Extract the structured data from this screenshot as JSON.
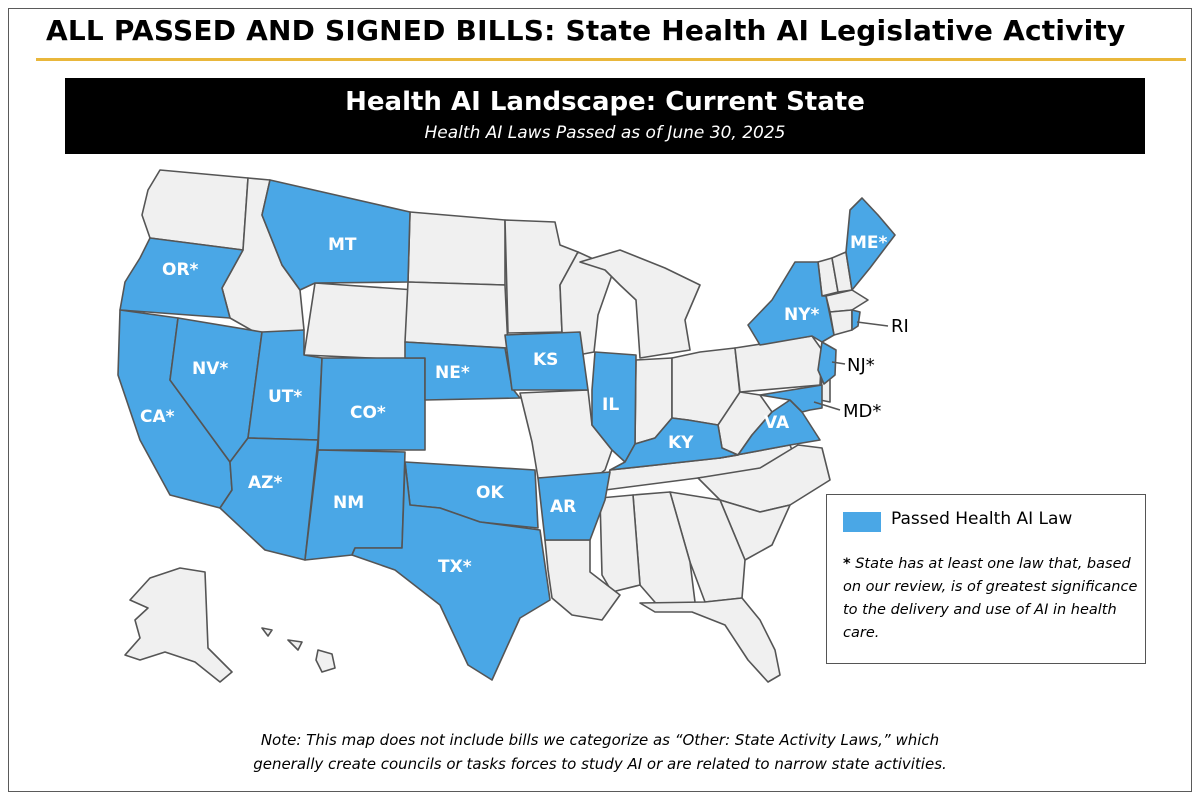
{
  "header": {
    "title": "ALL PASSED AND SIGNED BILLS: State Health AI Legislative Activity"
  },
  "banner": {
    "title": "Health AI Landscape: Current State",
    "subtitle": "Health AI Laws Passed as of June 30, 2025"
  },
  "colors": {
    "passed": "#4aa7e6",
    "not_passed": "#f0f0f0",
    "border": "#555555",
    "accent_rule": "#e9b73b"
  },
  "map": {
    "labels": {
      "or": "OR*",
      "ca": "CA*",
      "nv": "NV*",
      "mt": "MT",
      "ut": "UT*",
      "az": "AZ*",
      "co": "CO*",
      "nm": "NM",
      "ne": "NE*",
      "ks": "KS",
      "ok": "OK",
      "tx": "TX*",
      "ar": "AR",
      "il": "IL",
      "ky": "KY",
      "va": "VA",
      "ny": "NY*",
      "me": "ME*"
    },
    "callouts": {
      "ri": "RI",
      "nj": "NJ*",
      "md": "MD*"
    }
  },
  "legend": {
    "label": "Passed Health AI Law",
    "note_mark": "*",
    "note": "State has at least one law that, based on our review, is of greatest significance to the delivery and use of AI in health care."
  },
  "note": {
    "line1": "Note: This map does not include bills we categorize as “Other: State Activity Laws,” which",
    "line2": "generally create councils or tasks forces to study AI or are related to narrow state activities."
  }
}
